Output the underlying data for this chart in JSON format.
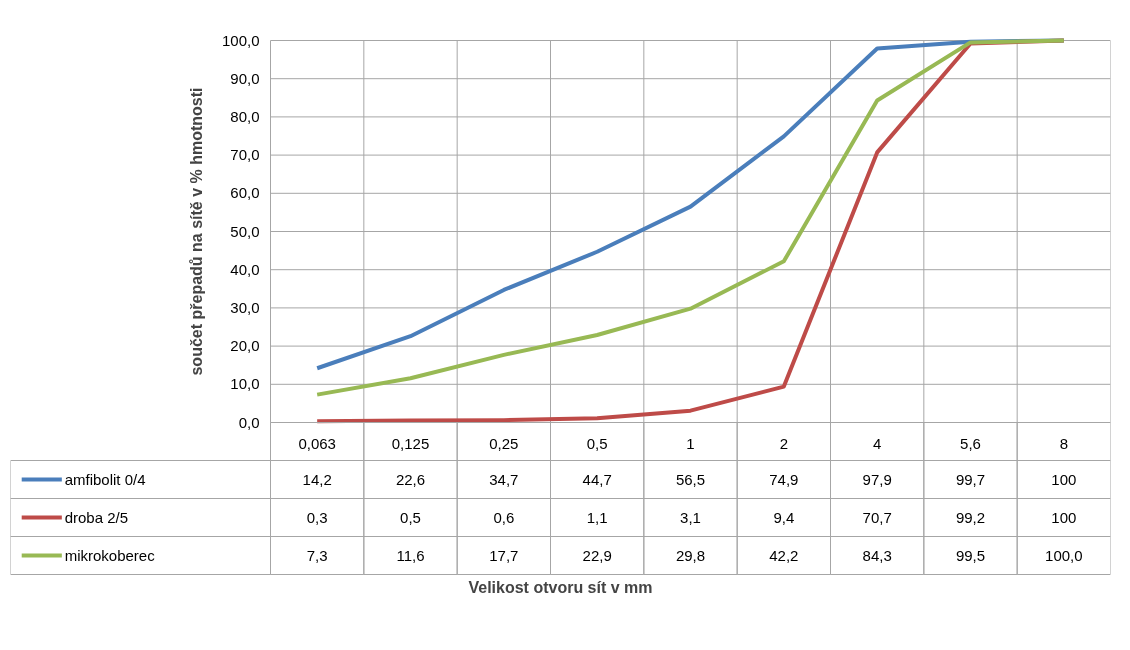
{
  "chart_data": {
    "type": "line",
    "ylabel": "součet přepadů na sítě v % hmotnosti",
    "annotations": [
      "Velikost otvoru sít v mm"
    ],
    "categories": [
      "0,063",
      "0,125",
      "0,25",
      "0,5",
      "1",
      "2",
      "4",
      "5,6",
      "8"
    ],
    "ylim": [
      0,
      100
    ],
    "yticks": [
      {
        "value": 0,
        "label": "0,0"
      },
      {
        "value": 10,
        "label": "10,0"
      },
      {
        "value": 20,
        "label": "20,0"
      },
      {
        "value": 30,
        "label": "30,0"
      },
      {
        "value": 40,
        "label": "40,0"
      },
      {
        "value": 50,
        "label": "50,0"
      },
      {
        "value": 60,
        "label": "60,0"
      },
      {
        "value": 70,
        "label": "70,0"
      },
      {
        "value": 80,
        "label": "80,0"
      },
      {
        "value": 90,
        "label": "90,0"
      },
      {
        "value": 100,
        "label": "100,0"
      }
    ],
    "grid": true,
    "legend": "bottom",
    "marker": "none",
    "line_style": "solid",
    "series": [
      {
        "name": "amfibolit 0/4",
        "color": "#4a7ebb",
        "values": [
          14.2,
          22.6,
          34.7,
          44.7,
          56.5,
          74.9,
          97.9,
          99.7,
          100
        ],
        "value_labels": [
          "14,2",
          "22,6",
          "34,7",
          "44,7",
          "56,5",
          "74,9",
          "97,9",
          "99,7",
          "100"
        ]
      },
      {
        "name": "droba 2/5",
        "color": "#be4b48",
        "values": [
          0.3,
          0.5,
          0.6,
          1.1,
          3.1,
          9.4,
          70.7,
          99.2,
          100
        ],
        "value_labels": [
          "0,3",
          "0,5",
          "0,6",
          "1,1",
          "3,1",
          "9,4",
          "70,7",
          "99,2",
          "100"
        ]
      },
      {
        "name": "mikrokoberec",
        "color": "#98b954",
        "values": [
          7.3,
          11.6,
          17.7,
          22.9,
          29.8,
          42.2,
          84.3,
          99.5,
          100
        ],
        "value_labels": [
          "7,3",
          "11,6",
          "17,7",
          "22,9",
          "29,8",
          "42,2",
          "84,3",
          "99,5",
          "100,0"
        ]
      }
    ]
  }
}
